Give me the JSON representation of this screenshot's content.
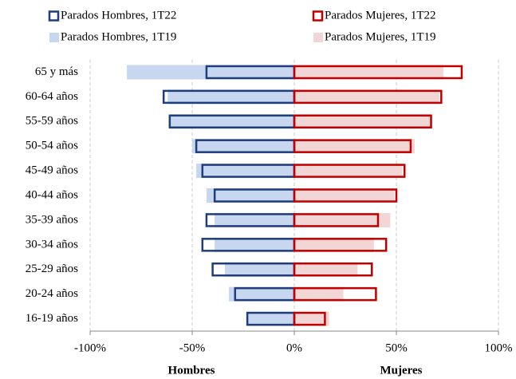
{
  "chart_data": {
    "type": "bar",
    "orientation": "horizontal",
    "categories": [
      "65 y más",
      "60-64 años",
      "55-59 años",
      "50-54 años",
      "45-49 años",
      "40-44 años",
      "35-39 años",
      "30-34 años",
      "25-29 años",
      "20-24 años",
      "16-19 años"
    ],
    "series": [
      {
        "name": "Parados Hombres, 1T19",
        "color": "#c6d7ef",
        "style": "fill",
        "values": [
          -82,
          -62,
          -61,
          -50,
          -48,
          -43,
          -39,
          -39,
          -34,
          -32,
          -23
        ]
      },
      {
        "name": "Parados Mujeres, 1T19",
        "color": "#f2d6d6",
        "style": "fill",
        "values": [
          73,
          71,
          67,
          59,
          53,
          49,
          47,
          39,
          31,
          24,
          17
        ]
      },
      {
        "name": "Parados Hombres, 1T22",
        "color": "#1f3d7a",
        "style": "outline",
        "values": [
          -43,
          -64,
          -61,
          -48,
          -45,
          -39,
          -43,
          -45,
          -40,
          -29,
          -23
        ]
      },
      {
        "name": "Parados Mujeres, 1T22",
        "color": "#c00000",
        "style": "outline",
        "values": [
          82,
          72,
          67,
          57,
          54,
          50,
          41,
          45,
          38,
          40,
          15
        ]
      }
    ],
    "xlim": [
      -100,
      100
    ],
    "xticks": [
      {
        "value": -100,
        "label": "-100%"
      },
      {
        "value": -50,
        "label": "-50%"
      },
      {
        "value": 0,
        "label": "0%"
      },
      {
        "value": 50,
        "label": "50%"
      },
      {
        "value": 100,
        "label": "100%"
      }
    ],
    "xlabels": [
      "Hombres",
      "Mujeres"
    ],
    "grid": true
  }
}
